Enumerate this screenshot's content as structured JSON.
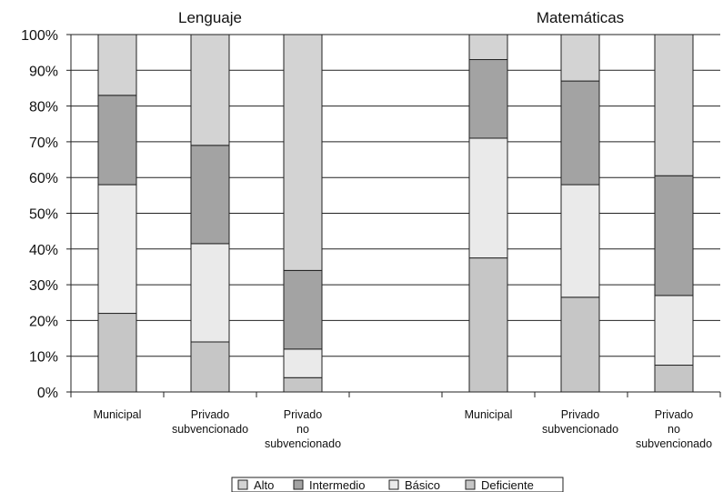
{
  "chart_data": {
    "type": "bar",
    "stacked": true,
    "percent": true,
    "groups": [
      {
        "title": "Lenguaje",
        "categories": [
          "Municipal",
          "Privado subvencionado",
          "Privado no subvencionado"
        ]
      },
      {
        "title": "Matemáticas",
        "categories": [
          "Municipal",
          "Privado subvencionado",
          "Privado no subvencionado"
        ]
      }
    ],
    "category_lines": [
      [
        "Municipal"
      ],
      [
        "Privado",
        "subvencionado"
      ],
      [
        "Privado",
        "no",
        "subvencionado"
      ]
    ],
    "yticks": [
      "0%",
      "10%",
      "20%",
      "30%",
      "40%",
      "50%",
      "60%",
      "70%",
      "80%",
      "90%",
      "100%"
    ],
    "ylim": [
      0,
      100
    ],
    "grid": true,
    "series": [
      {
        "name": "Deficiente",
        "color": "#c6c6c6",
        "values": [
          22,
          14,
          4,
          37.5,
          26.5,
          7.5
        ]
      },
      {
        "name": "Básico",
        "color": "#eaeaea",
        "values": [
          36,
          27.5,
          8,
          33.5,
          31.5,
          19.5
        ]
      },
      {
        "name": "Intermedio",
        "color": "#a3a3a3",
        "values": [
          25,
          27.5,
          22,
          22,
          29,
          33.5
        ]
      },
      {
        "name": "Alto",
        "color": "#d3d3d3",
        "values": [
          17,
          31,
          66,
          7,
          13,
          39.5
        ]
      }
    ],
    "legend_order": [
      "Alto",
      "Intermedio",
      "Básico",
      "Deficiente"
    ],
    "legend_position": "bottom"
  }
}
